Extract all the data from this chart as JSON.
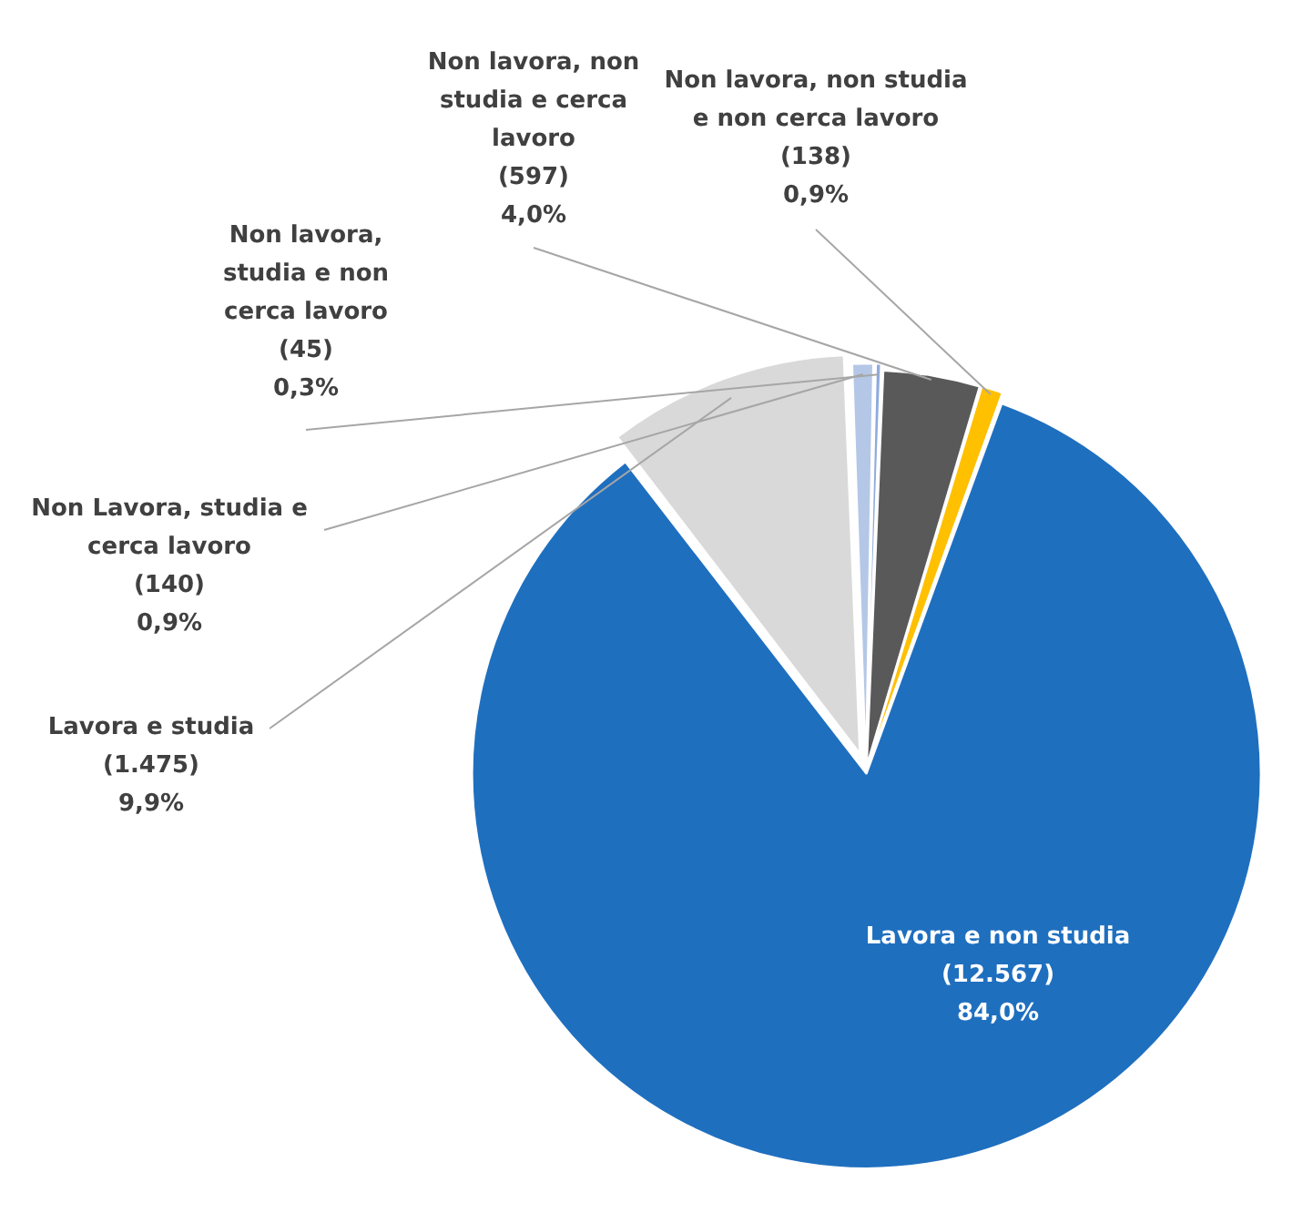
{
  "chart_data": {
    "type": "pie",
    "categories": [
      "Lavora e non studia",
      "Lavora e studia",
      "Non Lavora, studia e cerca lavoro",
      "Non lavora, studia e non cerca lavoro",
      "Non lavora, non studia e cerca lavoro",
      "Non lavora, non studia e non cerca lavoro"
    ],
    "values": [
      12567,
      1475,
      140,
      45,
      597,
      138
    ],
    "value_labels": [
      "(12.567)\n84,0%",
      "(1.475)\n9,9%",
      "(140)\n0,9%",
      "(45)\n0,3%",
      "(597)\n4,0%",
      "(138)\n0,9%"
    ],
    "colors": [
      "#1f6fbf",
      "#d9d9d9",
      "#b4c7e7",
      "#8faadc",
      "#595959",
      "#ffc000"
    ],
    "legend": false
  }
}
